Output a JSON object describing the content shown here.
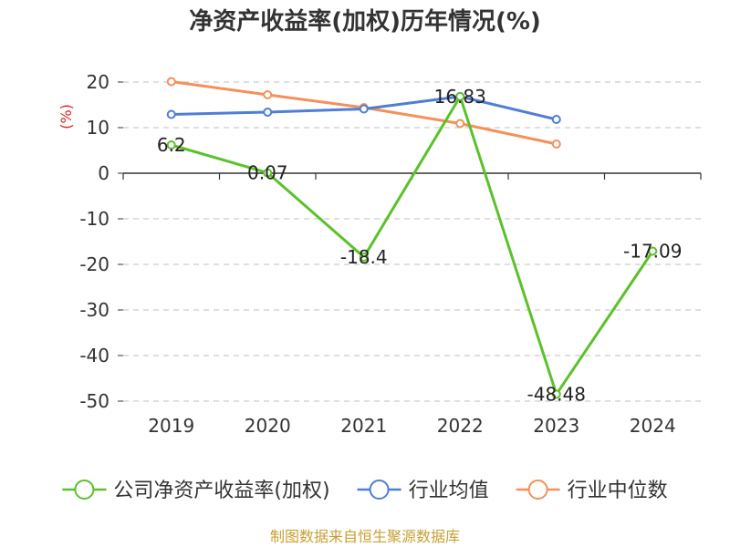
{
  "chart_data": {
    "type": "line",
    "title": "净资产收益率(加权)历年情况(%)",
    "xlabel": "",
    "ylabel": "(%)",
    "categories": [
      "2019",
      "2020",
      "2021",
      "2022",
      "2023",
      "2024"
    ],
    "ylim": [
      -50,
      20
    ],
    "yticks": [
      20,
      10,
      0,
      -10,
      -20,
      -30,
      -40,
      -50
    ],
    "grid": true,
    "legend_position": "bottom",
    "series": [
      {
        "name": "公司净资产收益率(加权)",
        "color": "#5ac229",
        "values": [
          6.2,
          0.07,
          -18.4,
          16.83,
          -48.48,
          -17.09
        ],
        "labels": [
          "6.2",
          "0.07",
          "-18.4",
          "16.83",
          "-48.48",
          "-17.09"
        ]
      },
      {
        "name": "行业均值",
        "color": "#4e7fd6",
        "values": [
          12.9,
          13.4,
          14.1,
          16.83,
          11.8,
          null
        ]
      },
      {
        "name": "行业中位数",
        "color": "#f5905a",
        "values": [
          20.1,
          17.2,
          14.4,
          10.9,
          6.4,
          null
        ]
      }
    ],
    "source": "制图数据来自恒生聚源数据库"
  }
}
